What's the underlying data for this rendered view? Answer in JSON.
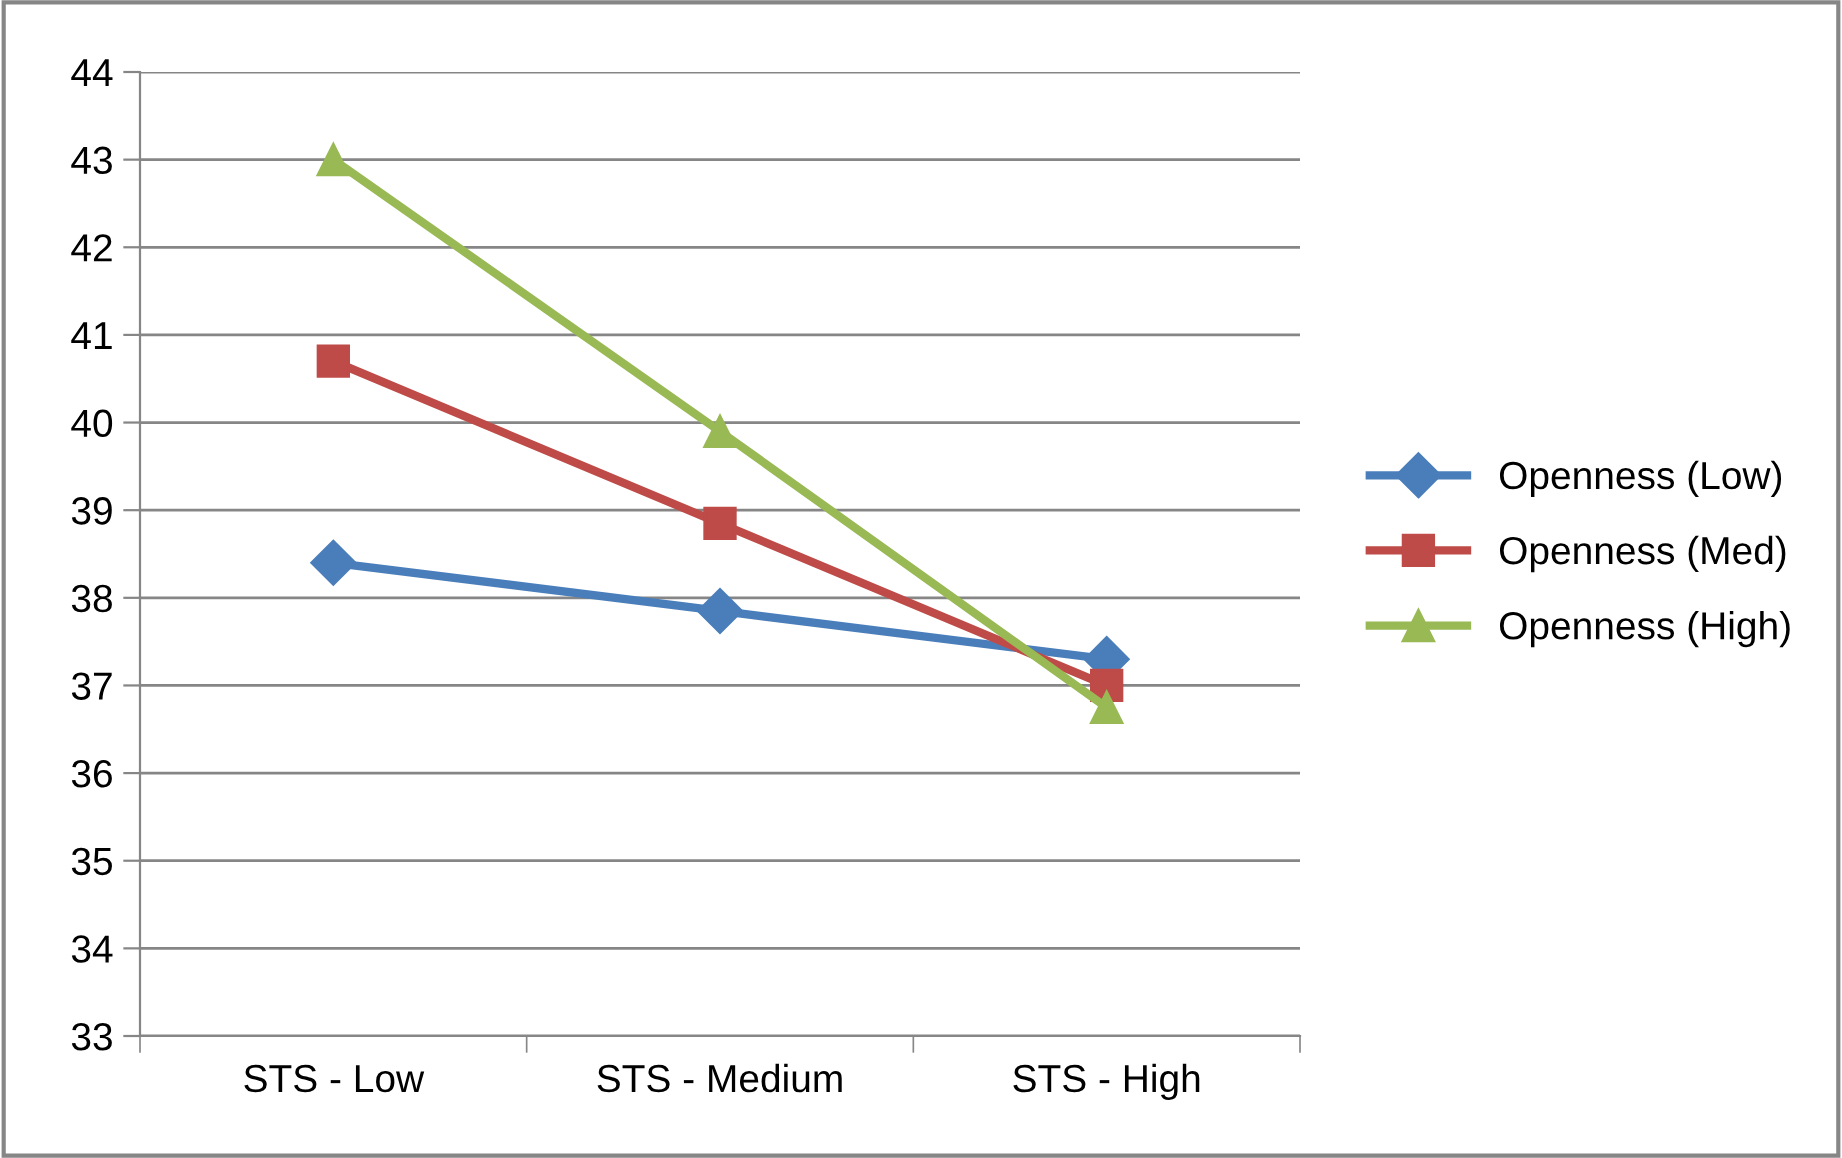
{
  "chart_data": {
    "type": "line",
    "categories": [
      "STS - Low",
      "STS - Medium",
      "STS - High"
    ],
    "series": [
      {
        "name": "Openness (Low)",
        "color": "#4a7ebb",
        "marker": "diamond",
        "values": [
          38.4,
          37.85,
          37.3
        ]
      },
      {
        "name": "Openness (Med)",
        "color": "#be4b48",
        "marker": "square",
        "values": [
          40.7,
          38.85,
          37.0
        ]
      },
      {
        "name": "Openness (High)",
        "color": "#98b954",
        "marker": "triangle",
        "values": [
          43.0,
          39.9,
          36.75
        ]
      }
    ],
    "ylim": [
      33,
      44
    ],
    "yticks": [
      33,
      34,
      35,
      36,
      37,
      38,
      39,
      40,
      41,
      42,
      43,
      44
    ],
    "grid": "y",
    "legend": "right",
    "line_style": "solid"
  }
}
